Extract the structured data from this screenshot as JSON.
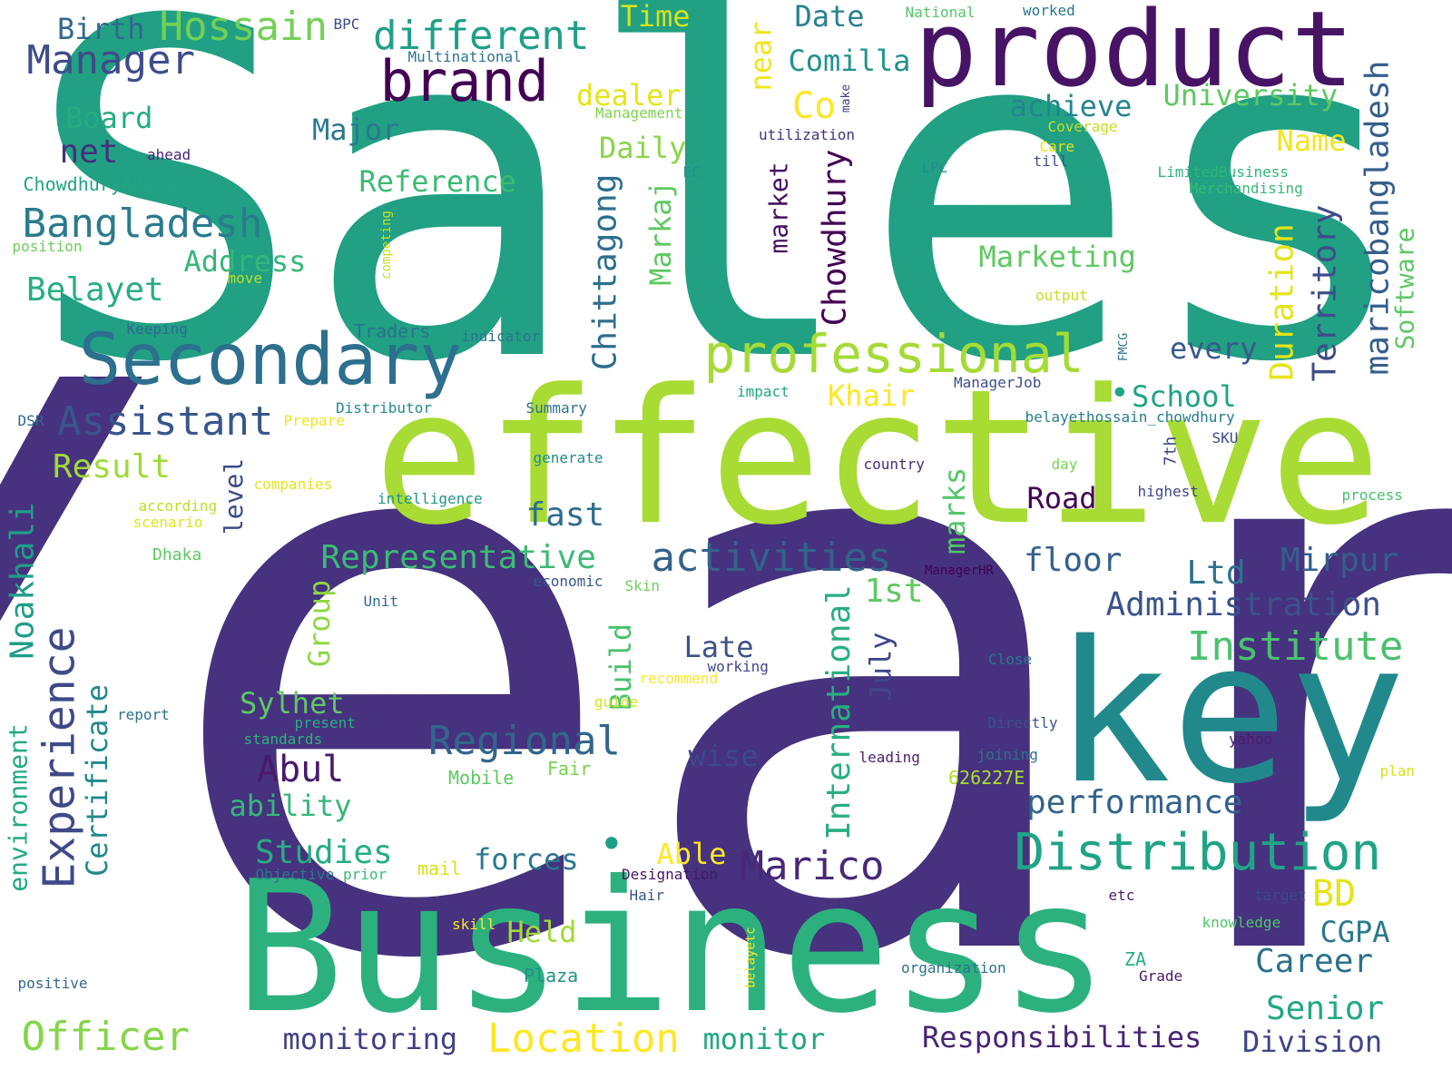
{
  "words": [
    {
      "text": "Year",
      "color": "#46327e",
      "v": 0
    },
    {
      "text": "Sales",
      "color": "#21a083",
      "v": 0
    },
    {
      "text": "effective",
      "color": "#a8db34",
      "v": 0
    },
    {
      "text": "Business",
      "color": "#2cb17e",
      "v": 0
    },
    {
      "text": "key",
      "color": "#21898c",
      "v": 0
    },
    {
      "text": "product",
      "color": "#471365",
      "v": 0
    },
    {
      "text": "Secondary",
      "color": "#2d6f8e",
      "v": 0
    },
    {
      "text": "professional",
      "color": "#a5db36",
      "v": 0
    },
    {
      "text": "brand",
      "color": "#440154",
      "v": 0
    },
    {
      "text": "Distribution",
      "color": "#20a486",
      "v": 0
    },
    {
      "text": "Bangladesh",
      "color": "#2a7b8e",
      "v": 0
    },
    {
      "text": "Experience",
      "color": "#3e4a89",
      "v": 1
    },
    {
      "text": "activities",
      "color": "#33638d",
      "v": 0
    },
    {
      "text": "Regional",
      "color": "#31668e",
      "v": 0
    },
    {
      "text": "Assistant",
      "color": "#39568c",
      "v": 0
    },
    {
      "text": "different",
      "color": "#1fa088",
      "v": 0
    },
    {
      "text": "Hossain",
      "color": "#73d056",
      "v": 0
    },
    {
      "text": "Manager",
      "color": "#3e4c8a",
      "v": 0
    },
    {
      "text": "Location",
      "color": "#fde725",
      "v": 0
    },
    {
      "text": "Officer",
      "color": "#86d549",
      "v": 0
    },
    {
      "text": "Administration",
      "color": "#3b528b",
      "v": 0
    },
    {
      "text": "Institute",
      "color": "#4ac16d",
      "v": 0
    },
    {
      "text": "Representative",
      "color": "#3bbb75",
      "v": 0
    },
    {
      "text": "performance",
      "color": "#33638d",
      "v": 0
    },
    {
      "text": "Responsibilities",
      "color": "#482475",
      "v": 0
    },
    {
      "text": "Marico",
      "color": "#482878",
      "v": 0
    },
    {
      "text": "maricobangladesh",
      "color": "#355f8d",
      "v": 1
    },
    {
      "text": "Chittagong",
      "color": "#2e6e8e",
      "v": 1
    },
    {
      "text": "Chowdhury",
      "color": "#440154",
      "v": 1
    },
    {
      "text": "Territory",
      "color": "#3e4c8a",
      "v": 1
    },
    {
      "text": "Duration",
      "color": "#e5e419",
      "v": 1
    },
    {
      "text": "Noakhali",
      "color": "#1f9e89",
      "v": 1
    },
    {
      "text": "International",
      "color": "#28ae80",
      "v": 1
    },
    {
      "text": "Certificate",
      "color": "#23898e",
      "v": 1
    },
    {
      "text": "environment",
      "color": "#23a983",
      "v": 1
    },
    {
      "text": "Software",
      "color": "#5cc863",
      "v": 1
    },
    {
      "text": "market",
      "color": "#471063",
      "v": 1
    },
    {
      "text": "Markaj",
      "color": "#5ec962",
      "v": 1
    },
    {
      "text": "Build",
      "color": "#4ac16d",
      "v": 1
    },
    {
      "text": "Group",
      "color": "#8fd744",
      "v": 1
    },
    {
      "text": "marks",
      "color": "#52c569",
      "v": 1
    },
    {
      "text": "July",
      "color": "#3f4788",
      "v": 1
    },
    {
      "text": "level",
      "color": "#3e4989",
      "v": 1
    },
    {
      "text": "near",
      "color": "#f1e51d",
      "v": 1
    },
    {
      "text": "7th",
      "color": "#3f4788",
      "v": 1
    },
    {
      "text": "competing",
      "color": "#c8e020",
      "v": 1
    },
    {
      "text": "belayetc",
      "color": "#fde725",
      "v": 1
    },
    {
      "text": "make",
      "color": "#433e85",
      "v": 1
    },
    {
      "text": "FMCG",
      "color": "#2d718e",
      "v": 1
    },
    {
      "text": "Senior",
      "color": "#22a785",
      "v": 0
    },
    {
      "text": "Studies",
      "color": "#27ad81",
      "v": 0
    },
    {
      "text": "Career",
      "color": "#2c728e",
      "v": 0
    },
    {
      "text": "Marketing",
      "color": "#5ec962",
      "v": 0
    },
    {
      "text": "School",
      "color": "#20a386",
      "v": 0
    },
    {
      "text": "Belayet",
      "color": "#28ae80",
      "v": 0
    },
    {
      "text": "University",
      "color": "#5ec962",
      "v": 0
    },
    {
      "text": "Reference",
      "color": "#3bbb75",
      "v": 0
    },
    {
      "text": "Address",
      "color": "#35b779",
      "v": 0
    },
    {
      "text": "Result",
      "color": "#a0da39",
      "v": 0
    },
    {
      "text": "monitoring",
      "color": "#424086",
      "v": 0
    },
    {
      "text": "Division",
      "color": "#414487",
      "v": 0
    },
    {
      "text": "Khair",
      "color": "#fde725",
      "v": 0
    },
    {
      "text": "Abul",
      "color": "#481a6c",
      "v": 0
    },
    {
      "text": "Mirpur",
      "color": "#355f8d",
      "v": 0
    },
    {
      "text": "floor",
      "color": "#34608d",
      "v": 0
    },
    {
      "text": "net",
      "color": "#46307e",
      "v": 0
    },
    {
      "text": "Birth",
      "color": "#31688e",
      "v": 0
    },
    {
      "text": "Comilla",
      "color": "#20928c",
      "v": 0
    },
    {
      "text": "achieve",
      "color": "#25858e",
      "v": 0
    },
    {
      "text": "Board",
      "color": "#25ab82",
      "v": 0
    },
    {
      "text": "Major",
      "color": "#2a788e",
      "v": 0
    },
    {
      "text": "Daily",
      "color": "#89d548",
      "v": 0
    },
    {
      "text": "Co",
      "color": "#fde725",
      "v": 0
    },
    {
      "text": "Name",
      "color": "#f1e51d",
      "v": 0
    },
    {
      "text": "Date",
      "color": "#26828e",
      "v": 0
    },
    {
      "text": "Time",
      "color": "#d2e21b",
      "v": 0
    },
    {
      "text": "dealer",
      "color": "#e5e419",
      "v": 0
    },
    {
      "text": "fast",
      "color": "#2e6e8e",
      "v": 0
    },
    {
      "text": "Road",
      "color": "#440154",
      "v": 0
    },
    {
      "text": "Ltd",
      "color": "#2c728e",
      "v": 0
    },
    {
      "text": "every",
      "color": "#38588c",
      "v": 0
    },
    {
      "text": "Late",
      "color": "#3b528b",
      "v": 0
    },
    {
      "text": "wise",
      "color": "#3e4989",
      "v": 0
    },
    {
      "text": "1st",
      "color": "#5ec962",
      "v": 0
    },
    {
      "text": "Sylhet",
      "color": "#5ec962",
      "v": 0
    },
    {
      "text": "ability",
      "color": "#35b779",
      "v": 0
    },
    {
      "text": "forces",
      "color": "#2a788e",
      "v": 0
    },
    {
      "text": "Able",
      "color": "#fde725",
      "v": 0
    },
    {
      "text": "Held",
      "color": "#a0da39",
      "v": 0
    },
    {
      "text": "BD",
      "color": "#e5e419",
      "v": 0
    },
    {
      "text": "CGPA",
      "color": "#2a788e",
      "v": 0
    },
    {
      "text": "monitor",
      "color": "#22a785",
      "v": 0
    },
    {
      "text": "Traders",
      "color": "#2c718e",
      "v": 0
    },
    {
      "text": "ChowdhuryAddress",
      "color": "#20a486",
      "v": 0
    },
    {
      "text": "Multinational",
      "color": "#2c738e",
      "v": 0
    },
    {
      "text": "BPC",
      "color": "#3e4a89",
      "v": 0
    },
    {
      "text": "National",
      "color": "#54c568",
      "v": 0
    },
    {
      "text": "worked",
      "color": "#2a768e",
      "v": 0
    },
    {
      "text": "Management",
      "color": "#7fd34e",
      "v": 0
    },
    {
      "text": "utilization",
      "color": "#46327e",
      "v": 0
    },
    {
      "text": "Coverage",
      "color": "#c2df23",
      "v": 0
    },
    {
      "text": "Care",
      "color": "#e2e418",
      "v": 0
    },
    {
      "text": "till",
      "color": "#3b528b",
      "v": 0
    },
    {
      "text": "LimitedBusiness",
      "color": "#2fb47c",
      "v": 0
    },
    {
      "text": "Merchandising",
      "color": "#3aba76",
      "v": 0
    },
    {
      "text": "ahead",
      "color": "#482475",
      "v": 0
    },
    {
      "text": "EC",
      "color": "#20938c",
      "v": 0
    },
    {
      "text": "LPC",
      "color": "#218f8d",
      "v": 0
    },
    {
      "text": "position",
      "color": "#6ccd5a",
      "v": 0
    },
    {
      "text": "move",
      "color": "#b5de2b",
      "v": 0
    },
    {
      "text": "output",
      "color": "#c0df25",
      "v": 0
    },
    {
      "text": "Keeping",
      "color": "#31678e",
      "v": 0
    },
    {
      "text": "indicator",
      "color": "#2c738e",
      "v": 0
    },
    {
      "text": "impact",
      "color": "#22a785",
      "v": 0
    },
    {
      "text": "ManagerJob",
      "color": "#3d4e8a",
      "v": 0
    },
    {
      "text": "Distributor",
      "color": "#23898e",
      "v": 0
    },
    {
      "text": "Summary",
      "color": "#2d708e",
      "v": 0
    },
    {
      "text": "DSR",
      "color": "#31688e",
      "v": 0
    },
    {
      "text": "Prepare",
      "color": "#f1e51d",
      "v": 0
    },
    {
      "text": "belayethossain_chowdhury",
      "color": "#287c8e",
      "v": 0
    },
    {
      "text": "SKU",
      "color": "#3e4a89",
      "v": 0
    },
    {
      "text": "generate",
      "color": "#228b8d",
      "v": 0
    },
    {
      "text": "day",
      "color": "#7ad151",
      "v": 0
    },
    {
      "text": "country",
      "color": "#472c7a",
      "v": 0
    },
    {
      "text": "companies",
      "color": "#e2e418",
      "v": 0
    },
    {
      "text": "intelligence",
      "color": "#1f958b",
      "v": 0
    },
    {
      "text": "highest",
      "color": "#3e4989",
      "v": 0
    },
    {
      "text": "process",
      "color": "#46c06f",
      "v": 0
    },
    {
      "text": "according",
      "color": "#bade28",
      "v": 0
    },
    {
      "text": "scenario",
      "color": "#dde318",
      "v": 0
    },
    {
      "text": "Dhaka",
      "color": "#5ec962",
      "v": 0
    },
    {
      "text": "economic",
      "color": "#38588c",
      "v": 0
    },
    {
      "text": "Skin",
      "color": "#6ece58",
      "v": 0
    },
    {
      "text": "ManagerHR",
      "color": "#440154",
      "v": 0
    },
    {
      "text": "Unit",
      "color": "#31688e",
      "v": 0
    },
    {
      "text": "working",
      "color": "#3f4788",
      "v": 0
    },
    {
      "text": "Close",
      "color": "#2a788e",
      "v": 0
    },
    {
      "text": "recommend",
      "color": "#fde725",
      "v": 0
    },
    {
      "text": "guide",
      "color": "#d8e219",
      "v": 0
    },
    {
      "text": "report",
      "color": "#2c728e",
      "v": 0
    },
    {
      "text": "present",
      "color": "#29af7f",
      "v": 0
    },
    {
      "text": "standards",
      "color": "#2db27d",
      "v": 0
    },
    {
      "text": "Directly",
      "color": "#3b528b",
      "v": 0
    },
    {
      "text": "yahoo",
      "color": "#481b6d",
      "v": 0
    },
    {
      "text": "leading",
      "color": "#482071",
      "v": 0
    },
    {
      "text": "joining",
      "color": "#2c728e",
      "v": 0
    },
    {
      "text": "plan",
      "color": "#d8e219",
      "v": 0
    },
    {
      "text": "Mobile",
      "color": "#5ec962",
      "v": 0
    },
    {
      "text": "Fair",
      "color": "#7ad151",
      "v": 0
    },
    {
      "text": "626227E",
      "color": "#addc30",
      "v": 0
    },
    {
      "text": "Objective",
      "color": "#2a788e",
      "v": 0
    },
    {
      "text": "prior",
      "color": "#38b977",
      "v": 0
    },
    {
      "text": "mail",
      "color": "#d8e219",
      "v": 0
    },
    {
      "text": "Designation",
      "color": "#481668",
      "v": 0
    },
    {
      "text": "Hair",
      "color": "#3a548c",
      "v": 0
    },
    {
      "text": "etc",
      "color": "#482173",
      "v": 0
    },
    {
      "text": "target",
      "color": "#3e4989",
      "v": 0
    },
    {
      "text": "skill",
      "color": "#fde725",
      "v": 0
    },
    {
      "text": "knowledge",
      "color": "#4ec36b",
      "v": 0
    },
    {
      "text": "ZA",
      "color": "#29af7f",
      "v": 0
    },
    {
      "text": "Plaza",
      "color": "#21918c",
      "v": 0
    },
    {
      "text": "Grade",
      "color": "#481a6c",
      "v": 0
    },
    {
      "text": "organization",
      "color": "#2c728e",
      "v": 0
    },
    {
      "text": "positive",
      "color": "#31688e",
      "v": 0
    },
    {
      "text": "•",
      "color": "#20a386",
      "v": 0
    },
    {
      "text": "•",
      "color": "#1f9e89",
      "v": 0
    }
  ]
}
